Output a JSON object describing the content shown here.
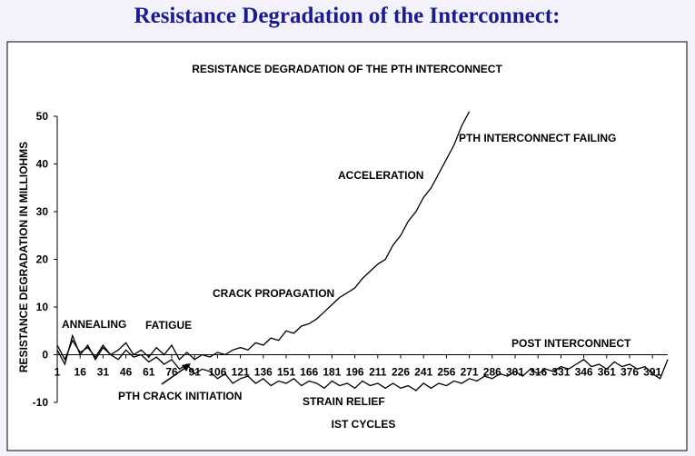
{
  "title": "Resistance Degradation of the Interconnect:",
  "chart_data": {
    "type": "line",
    "title": "RESISTANCE DEGRADATION OF THE PTH INTERCONNECT",
    "xlabel": "IST CYCLES",
    "ylabel": "RESISTANCE DEGRADATION IN MILLIOHMS",
    "xlim": [
      1,
      401
    ],
    "xticks": [
      1,
      16,
      31,
      46,
      61,
      76,
      91,
      106,
      121,
      136,
      151,
      166,
      181,
      196,
      211,
      226,
      241,
      256,
      271,
      286,
      301,
      316,
      331,
      346,
      361,
      376,
      391
    ],
    "ylim": [
      -10,
      50
    ],
    "yticks": [
      -10,
      0,
      10,
      20,
      30,
      40,
      50
    ],
    "series": [
      {
        "color": "#000000",
        "x": [
          1,
          6,
          11,
          16,
          21,
          26,
          31,
          36,
          41,
          46,
          51,
          56,
          61,
          66,
          71,
          76,
          81,
          86,
          91,
          96,
          101,
          106,
          111,
          116,
          121,
          126,
          131,
          136,
          141,
          146,
          151,
          156,
          161,
          166,
          171,
          176,
          181,
          186,
          191,
          196,
          201,
          206,
          211,
          216,
          221,
          226,
          231,
          236,
          241,
          246,
          251,
          256,
          261,
          266,
          271
        ],
        "values": [
          2,
          -1,
          3,
          0.5,
          1.5,
          -0.5,
          2,
          0,
          1,
          2.5,
          0,
          1,
          -0.5,
          1.5,
          0,
          2,
          -1,
          0.5,
          -1,
          0,
          -0.5,
          0.5,
          0,
          1,
          1.5,
          1,
          2.5,
          2,
          3.5,
          3,
          5,
          4.5,
          6,
          6.5,
          7.5,
          9,
          10.5,
          12,
          13,
          14,
          16,
          17.5,
          19,
          20,
          23,
          25,
          28,
          30,
          33,
          35,
          38,
          41,
          44,
          48,
          51
        ]
      },
      {
        "color": "#000000",
        "x": [
          1,
          6,
          11,
          16,
          21,
          26,
          31,
          36,
          41,
          46,
          51,
          56,
          61,
          66,
          71,
          76,
          81,
          86,
          91,
          96,
          101,
          106,
          111,
          116,
          121,
          126,
          131,
          136,
          141,
          146,
          151,
          156,
          161,
          166,
          171,
          176,
          181,
          186,
          191,
          196,
          201,
          206,
          211,
          216,
          221,
          226,
          231,
          236,
          241,
          246,
          251,
          256,
          261,
          266,
          271,
          276,
          281,
          286,
          291,
          296,
          301,
          306,
          311,
          316,
          321,
          326,
          331,
          336,
          341,
          346,
          351,
          356,
          361,
          366,
          371,
          376,
          381,
          386,
          391,
          396,
          401
        ],
        "values": [
          1,
          -2,
          4,
          0,
          2,
          -1,
          1.5,
          0,
          -1,
          1,
          -0.5,
          0,
          -1.5,
          -0.5,
          -2,
          -1,
          -3,
          -2,
          -4,
          -3,
          -3.5,
          -5,
          -4,
          -6,
          -5,
          -4.5,
          -6,
          -5,
          -6.5,
          -5.5,
          -6,
          -5,
          -6.5,
          -5.5,
          -6,
          -7,
          -5.5,
          -6.5,
          -6,
          -7,
          -5.5,
          -6.5,
          -6,
          -7,
          -6,
          -7,
          -6.5,
          -7.5,
          -6,
          -7,
          -6,
          -6.5,
          -5.5,
          -6,
          -5,
          -5.5,
          -4.5,
          -5,
          -4,
          -4.5,
          -3.5,
          -4.5,
          -3,
          -4,
          -3,
          -3.5,
          -2.5,
          -3,
          -2,
          -1,
          -2.5,
          -2,
          -3,
          -1.5,
          -2.5,
          -2,
          -3,
          -2.5,
          -4,
          -5,
          -1
        ]
      }
    ],
    "annotations": [
      "ANNEALING",
      "FATIGUE",
      "PTH CRACK INITIATION",
      "CRACK PROPAGATION",
      "ACCELERATION",
      "PTH INTERCONNECT FAILING",
      "STRAIN RELIEF",
      "POST INTERCONNECT"
    ]
  }
}
